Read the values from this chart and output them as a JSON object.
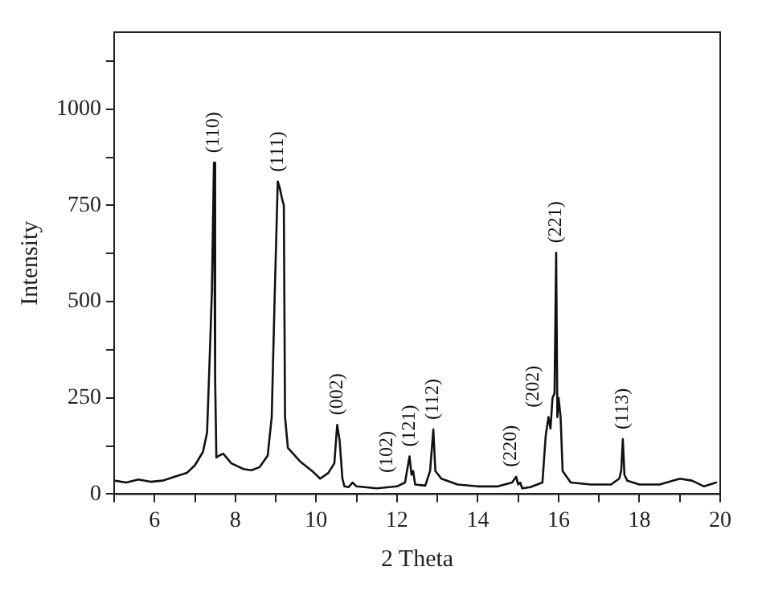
{
  "chart_data": {
    "type": "line",
    "xlabel": "2 Theta",
    "ylabel": "Intensity",
    "x": [
      5.0,
      5.3,
      5.6,
      5.9,
      6.2,
      6.5,
      6.8,
      7.0,
      7.2,
      7.3,
      7.38,
      7.42,
      7.47,
      7.5,
      7.53,
      7.6,
      7.7,
      7.9,
      8.2,
      8.4,
      8.6,
      8.8,
      8.9,
      8.97,
      9.05,
      9.1,
      9.15,
      9.2,
      9.23,
      9.3,
      9.6,
      9.9,
      10.1,
      10.3,
      10.45,
      10.52,
      10.58,
      10.65,
      10.7,
      10.8,
      10.9,
      11.0,
      11.5,
      12.0,
      12.2,
      12.31,
      12.36,
      12.4,
      12.45,
      12.7,
      12.82,
      12.9,
      12.95,
      13.1,
      13.5,
      14.0,
      14.5,
      14.85,
      14.95,
      15.0,
      15.05,
      15.1,
      15.3,
      15.6,
      15.68,
      15.75,
      15.8,
      15.85,
      15.9,
      15.94,
      15.97,
      16.0,
      16.05,
      16.1,
      16.3,
      16.8,
      17.3,
      17.5,
      17.55,
      17.59,
      17.63,
      17.7,
      18.0,
      18.5,
      19.0,
      19.3,
      19.6,
      19.9
    ],
    "series": [
      {
        "color": "#111111",
        "values": [
          35,
          30,
          38,
          32,
          35,
          45,
          55,
          75,
          110,
          160,
          400,
          530,
          861,
          300,
          95,
          100,
          105,
          80,
          65,
          62,
          70,
          100,
          200,
          500,
          812,
          795,
          770,
          750,
          200,
          120,
          85,
          60,
          40,
          55,
          80,
          180,
          140,
          40,
          20,
          18,
          30,
          20,
          15,
          20,
          30,
          98,
          50,
          60,
          25,
          22,
          60,
          168,
          60,
          40,
          25,
          20,
          20,
          30,
          45,
          25,
          30,
          15,
          18,
          30,
          150,
          200,
          170,
          250,
          262,
          627,
          200,
          250,
          200,
          60,
          30,
          25,
          25,
          40,
          60,
          143,
          50,
          35,
          25,
          25,
          40,
          35,
          20,
          30
        ]
      }
    ],
    "xlim": [
      5,
      20
    ],
    "ylim": [
      0,
      1200
    ],
    "xticks": [
      {
        "value": 5,
        "label": null
      },
      6,
      {
        "value": 7,
        "label": null
      },
      8,
      {
        "value": 9,
        "label": null
      },
      10,
      {
        "value": 11,
        "label": null
      },
      12,
      {
        "value": 13,
        "label": null
      },
      14,
      {
        "value": 15,
        "label": null
      },
      16,
      {
        "value": 17,
        "label": null
      },
      18,
      {
        "value": 19,
        "label": null
      },
      20
    ],
    "yticks": [
      0,
      {
        "value": 125,
        "label": null
      },
      250,
      {
        "value": 375,
        "label": null
      },
      500,
      {
        "value": 625,
        "label": null
      },
      750,
      {
        "value": 875,
        "label": null
      },
      1000,
      {
        "value": 1125,
        "label": null
      }
    ],
    "grid": false,
    "legend": false,
    "marker": "none",
    "line_style": "solid",
    "annotations": [
      {
        "text": "(110)",
        "x": 7.47,
        "y": 861
      },
      {
        "text": "(111)",
        "x": 9.05,
        "y": 812
      },
      {
        "text": "(002)",
        "x": 10.52,
        "y": 180
      },
      {
        "text": "(102)",
        "x": 12.2,
        "y": 30
      },
      {
        "text": "(121)",
        "x": 12.31,
        "y": 98
      },
      {
        "text": "(112)",
        "x": 12.9,
        "y": 168
      },
      {
        "text": "(220)",
        "x": 14.95,
        "y": 45
      },
      {
        "text": "(202)",
        "x": 15.75,
        "y": 200
      },
      {
        "text": "(221)",
        "x": 15.94,
        "y": 627
      },
      {
        "text": "(113)",
        "x": 17.59,
        "y": 143
      }
    ]
  }
}
